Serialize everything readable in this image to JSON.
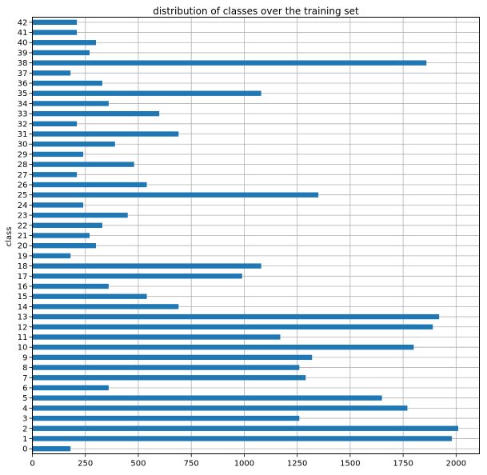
{
  "chart_data": {
    "type": "bar",
    "orientation": "horizontal",
    "title": "distribution of classes over the training set",
    "xlabel": "",
    "ylabel": "class",
    "xlim": [
      0,
      2110
    ],
    "xticks": [
      0,
      250,
      500,
      750,
      1000,
      1250,
      1500,
      1750,
      2000
    ],
    "grid": true,
    "legend": "none",
    "bar_color": "#1f77b4",
    "categories": [
      "0",
      "1",
      "2",
      "3",
      "4",
      "5",
      "6",
      "7",
      "8",
      "9",
      "10",
      "11",
      "12",
      "13",
      "14",
      "15",
      "16",
      "17",
      "18",
      "19",
      "20",
      "21",
      "22",
      "23",
      "24",
      "25",
      "26",
      "27",
      "28",
      "29",
      "30",
      "31",
      "32",
      "33",
      "34",
      "35",
      "36",
      "37",
      "38",
      "39",
      "40",
      "41",
      "42"
    ],
    "values": [
      180,
      1980,
      2010,
      1260,
      1770,
      1650,
      360,
      1290,
      1260,
      1320,
      1800,
      1170,
      1890,
      1920,
      690,
      540,
      360,
      990,
      1080,
      180,
      300,
      270,
      330,
      450,
      240,
      1350,
      540,
      210,
      480,
      240,
      390,
      690,
      210,
      599,
      360,
      1080,
      330,
      180,
      1860,
      270,
      300,
      210,
      210
    ]
  }
}
